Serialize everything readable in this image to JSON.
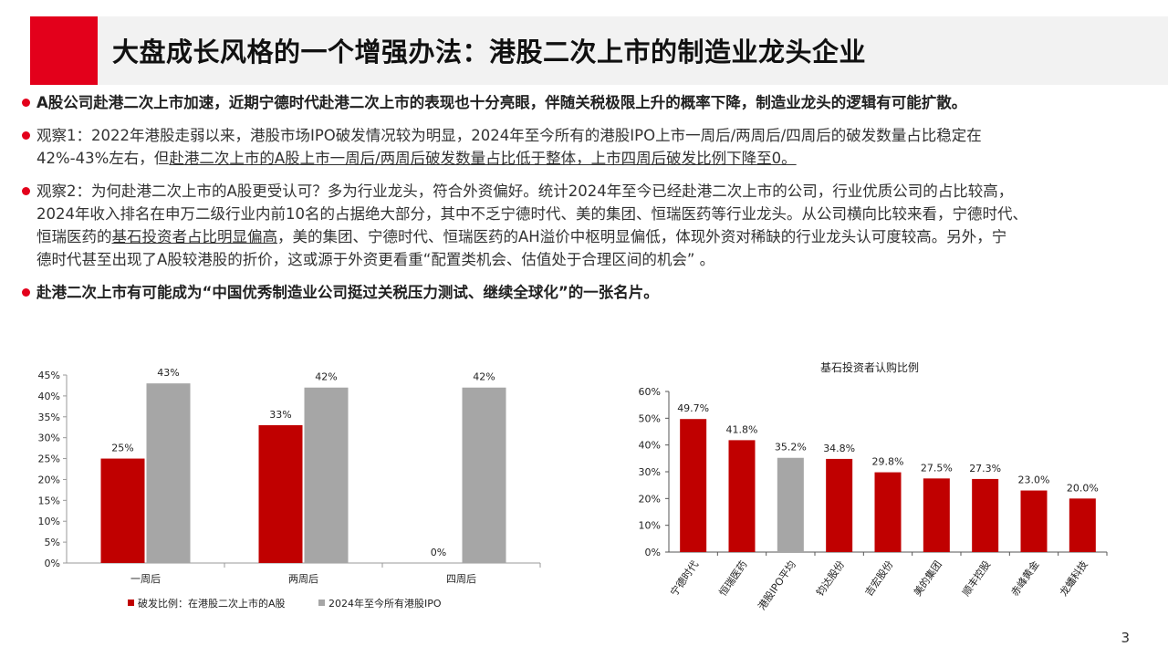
{
  "slide": {
    "title": "大盘成长风格的一个增强办法：港股二次上市的制造业龙头企业",
    "page_number": "3",
    "accent_color": "#e3001b"
  },
  "bullets": [
    {
      "text": "A股公司赴港二次上市加速，近期宁德时代赴港二次上市的表现也十分亮眼，伴随关税极限上升的概率下降，制造业龙头的逻辑有可能扩散。"
    },
    {
      "line1": "观察1：2022年港股走弱以来，港股市场IPO破发情况较为明显，2024年至今所有的港股IPO上市一周后/两周后/四周后的破发数量占比稳定在",
      "line2_plain": "42%-43%左右，但",
      "line2_underline": "赴港二次上市的A股上市一周后/两周后破发数量占比低于整体，上市四周后破发比例下降至0。"
    },
    {
      "line1": "观察2：为何赴港二次上市的A股更受认可？多为行业龙头，符合外资偏好。统计2024年至今已经赴港二次上市的公司，行业优质公司的占比较高，",
      "line2": "2024年收入排名在申万二级行业内前10名的占据绝大部分，其中不乏宁德时代、美的集团、恒瑞医药等行业龙头。从公司横向比较来看，宁德时代、",
      "line3_plain_a": "恒瑞医药的",
      "line3_underline": "基石投资者占比明显偏高",
      "line3_plain_b": "，美的集团、宁德时代、恒瑞医药的AH溢价中枢明显偏低，体现外资对稀缺的行业龙头认可度较高。另外，宁",
      "line4": "德时代甚至出现了A股较港股的折价，这或源于外资更看重“配置类机会、估值处于合理区间的机会” 。"
    },
    {
      "text": "赴港二次上市有可能成为“中国优秀制造业公司挺过关税压力测试、继续全球化”的一张名片。"
    }
  ],
  "chart_data": [
    {
      "type": "bar",
      "title": "",
      "categories": [
        "一周后",
        "两周后",
        "四周后"
      ],
      "series": [
        {
          "name": "破发比例：在港股二次上市的A股",
          "values": [
            25,
            33,
            0
          ],
          "labels": [
            "25%",
            "33%",
            "0%"
          ],
          "color": "#c00000"
        },
        {
          "name": "2024年至今所有港股IPO",
          "values": [
            43,
            42,
            42
          ],
          "labels": [
            "43%",
            "42%",
            "42%"
          ],
          "color": "#a6a6a6"
        }
      ],
      "ylim": [
        0,
        45
      ],
      "yticks": [
        "0%",
        "5%",
        "10%",
        "15%",
        "20%",
        "25%",
        "30%",
        "35%",
        "40%",
        "45%"
      ],
      "legend": "bottom",
      "grid": false
    },
    {
      "type": "bar",
      "title": "基石投资者认购比例",
      "categories": [
        "宁德时代",
        "恒瑞医药",
        "港股IPO平均",
        "钧达股份",
        "吉宏股份",
        "美的集团",
        "顺丰控股",
        "赤峰黄金",
        "龙蟠科技"
      ],
      "values": [
        49.7,
        41.8,
        35.2,
        34.8,
        29.8,
        27.5,
        27.3,
        23.0,
        20.0
      ],
      "labels": [
        "49.7%",
        "41.8%",
        "35.2%",
        "34.8%",
        "29.8%",
        "27.5%",
        "27.3%",
        "23.0%",
        "20.0%"
      ],
      "colors": [
        "#c00000",
        "#c00000",
        "#a6a6a6",
        "#c00000",
        "#c00000",
        "#c00000",
        "#c00000",
        "#c00000",
        "#c00000"
      ],
      "ylim": [
        0,
        60
      ],
      "yticks": [
        "0%",
        "10%",
        "20%",
        "30%",
        "40%",
        "50%",
        "60%"
      ],
      "grid": false
    }
  ]
}
